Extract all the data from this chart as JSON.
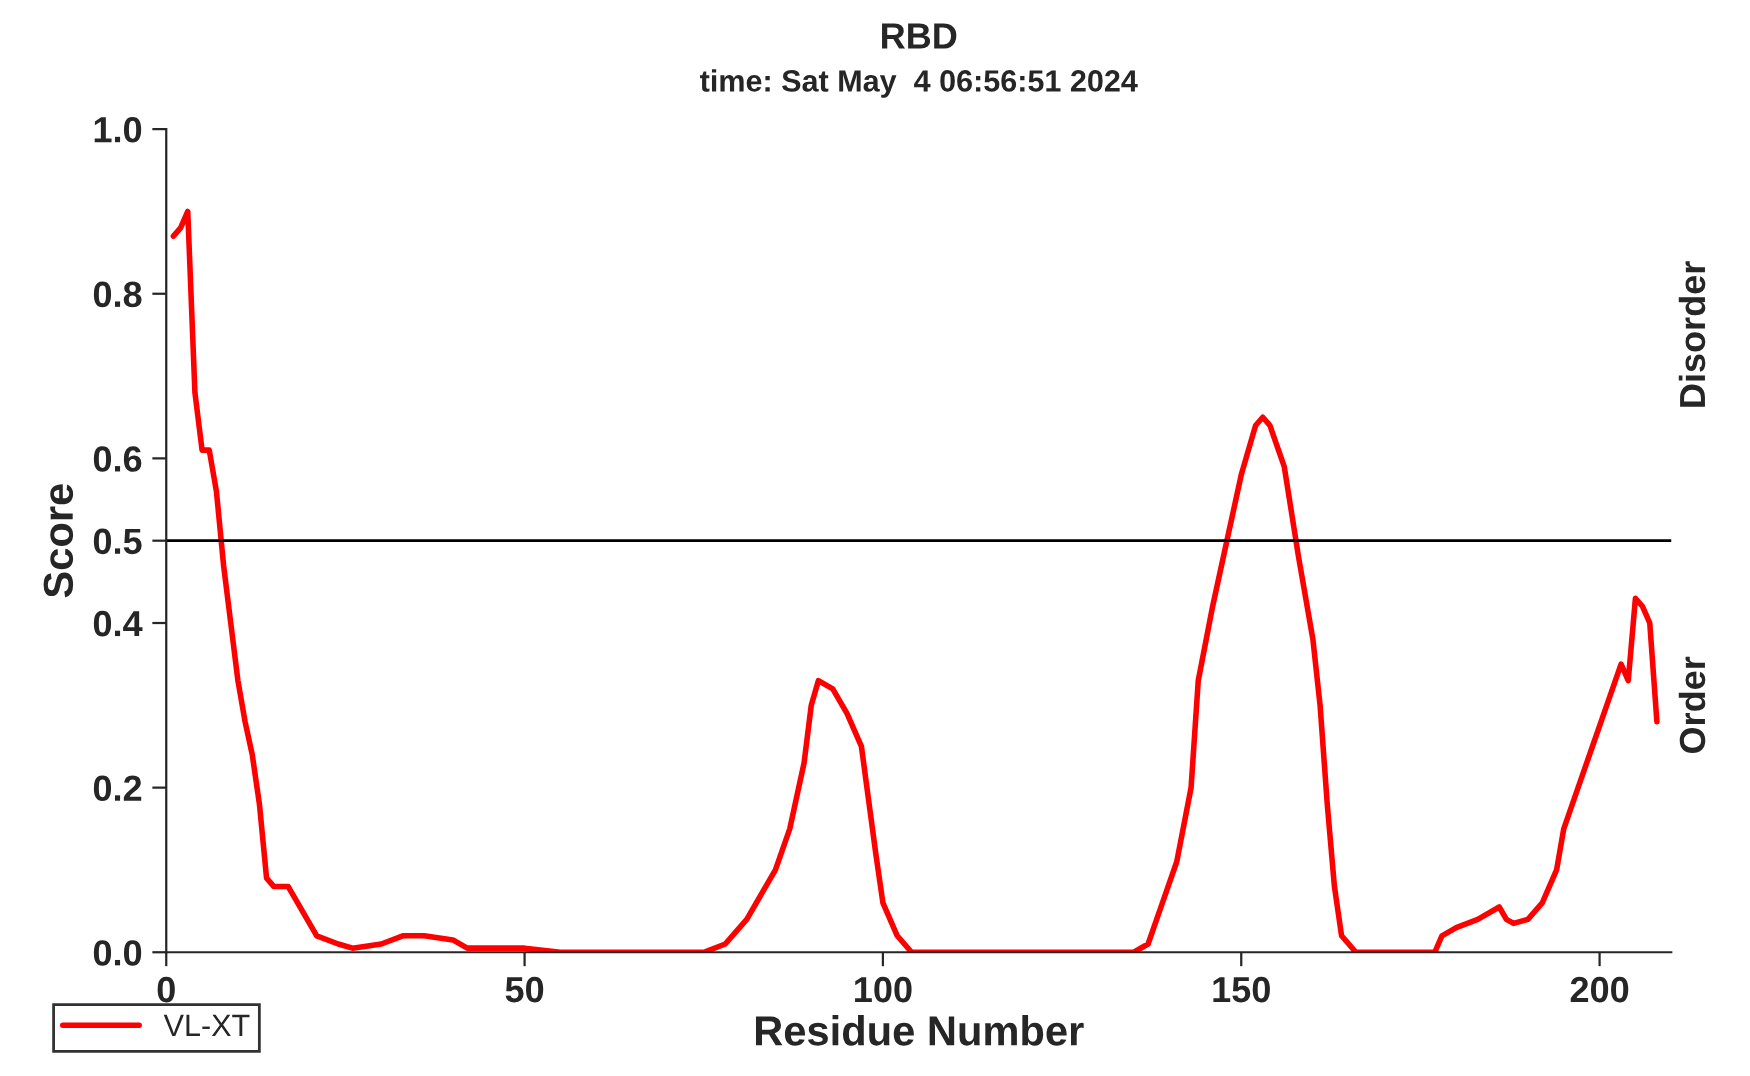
{
  "chart_data": {
    "type": "line",
    "title": "RBD",
    "subtitle": "time: Sat May  4 06:56:51 2024",
    "xlabel": "Residue Number",
    "ylabel": "Score",
    "xlim": [
      0,
      210
    ],
    "ylim": [
      0,
      1
    ],
    "xticks": [
      0,
      50,
      100,
      150,
      200
    ],
    "yticks": [
      {
        "value": 0,
        "label": "0.0"
      },
      {
        "value": 0.2,
        "label": "0.2"
      },
      {
        "value": 0.4,
        "label": "0.4"
      },
      {
        "value": 0.5,
        "label": "0.5"
      },
      {
        "value": 0.6,
        "label": "0.6"
      },
      {
        "value": 0.8,
        "label": "0.8"
      },
      {
        "value": 1,
        "label": "1.0"
      }
    ],
    "grid": false,
    "legend": "bottom left",
    "marker": "none",
    "line_style": "solid",
    "ref_lines": [
      {
        "axis": "y",
        "value": 0.5,
        "color": "#000000"
      }
    ],
    "annotations": [
      "Disorder",
      "Order"
    ],
    "series": [
      {
        "name": "VL-XT",
        "color": "#ff0000",
        "x": [
          1,
          2,
          3,
          4,
          5,
          6,
          7,
          8,
          9,
          10,
          11,
          12,
          13,
          14,
          15,
          17,
          19,
          21,
          24,
          26,
          30,
          33,
          36,
          40,
          42,
          50,
          55,
          75,
          78,
          81,
          85,
          87,
          88,
          89,
          90,
          91,
          93,
          95,
          97,
          99,
          100,
          102,
          104,
          135,
          137,
          139,
          141,
          143,
          144,
          146,
          148,
          150,
          152,
          153,
          154,
          156,
          158,
          160,
          161,
          162,
          163,
          164,
          166,
          177,
          178,
          180,
          183,
          186,
          187,
          188,
          190,
          192,
          194,
          195,
          197,
          199,
          201,
          203,
          204,
          205,
          206,
          207,
          208
        ],
        "values": [
          0.87,
          0.88,
          0.9,
          0.68,
          0.61,
          0.61,
          0.56,
          0.47,
          0.4,
          0.33,
          0.28,
          0.24,
          0.18,
          0.09,
          0.08,
          0.08,
          0.05,
          0.02,
          0.01,
          0.005,
          0.01,
          0.02,
          0.02,
          0.015,
          0.005,
          0.005,
          0,
          0,
          0.01,
          0.04,
          0.1,
          0.15,
          0.19,
          0.23,
          0.3,
          0.33,
          0.32,
          0.29,
          0.25,
          0.12,
          0.06,
          0.02,
          0,
          0,
          0.01,
          0.06,
          0.11,
          0.2,
          0.33,
          0.42,
          0.5,
          0.58,
          0.64,
          0.65,
          0.64,
          0.59,
          0.48,
          0.38,
          0.3,
          0.18,
          0.08,
          0.02,
          0,
          0,
          0.02,
          0.03,
          0.04,
          0.055,
          0.04,
          0.035,
          0.04,
          0.06,
          0.1,
          0.15,
          0.2,
          0.25,
          0.3,
          0.35,
          0.33,
          0.43,
          0.42,
          0.4,
          0.28
        ]
      }
    ]
  }
}
